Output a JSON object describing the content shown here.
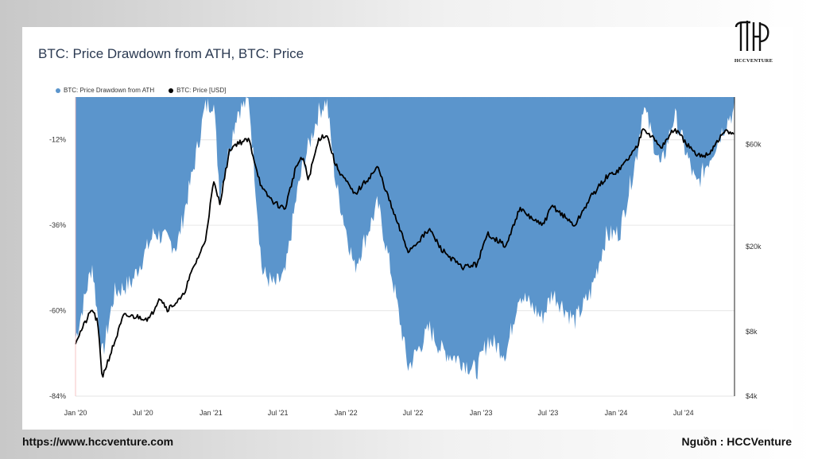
{
  "header": {
    "title": "BTC: Price Drawdown from ATH, BTC: Price",
    "logo_text": "HCCVENTURE"
  },
  "footer": {
    "website": "https://www.hccventure.com",
    "source": "Nguồn : HCCVenture"
  },
  "colors": {
    "drawdown": "#5b95cc",
    "price": "#000000",
    "grid": "#e6e6e6"
  },
  "chart_data": {
    "type": "area",
    "title": "BTC: Price Drawdown from ATH, BTC: Price",
    "x_ticks": [
      "Jan '20",
      "Jul '20",
      "Jan '21",
      "Jul '21",
      "Jan '22",
      "Jul '22",
      "Jan '23",
      "Jul '23",
      "Jan '24",
      "Jul '24"
    ],
    "y_left_ticks": [
      "-12%",
      "-36%",
      "-60%",
      "-84%"
    ],
    "y_right_ticks": [
      "$60k",
      "$20k",
      "$8k",
      "$4k"
    ],
    "y_left_range": [
      -84,
      0
    ],
    "y_right_scale": "log",
    "y_right_range": [
      4000,
      100000
    ],
    "grid": true,
    "legend_position": "top-left",
    "series": [
      {
        "name": "BTC: Price Drawdown from ATH",
        "axis": "left",
        "style": "area",
        "x": [
          "2020-01-01",
          "2020-02-15",
          "2020-03-13",
          "2020-04-15",
          "2020-06-01",
          "2020-08-01",
          "2020-10-01",
          "2020-11-15",
          "2020-12-16",
          "2021-01-08",
          "2021-01-25",
          "2021-03-13",
          "2021-04-14",
          "2021-05-19",
          "2021-06-22",
          "2021-07-20",
          "2021-08-20",
          "2021-09-07",
          "2021-10-20",
          "2021-11-10",
          "2021-12-04",
          "2022-01-24",
          "2022-03-28",
          "2022-05-12",
          "2022-06-18",
          "2022-08-15",
          "2022-09-15",
          "2022-11-09",
          "2022-12-20",
          "2023-01-20",
          "2023-03-10",
          "2023-04-14",
          "2023-06-15",
          "2023-07-13",
          "2023-09-11",
          "2023-10-24",
          "2023-12-05",
          "2024-01-11",
          "2024-02-28",
          "2024-03-14",
          "2024-05-01",
          "2024-06-07",
          "2024-08-05",
          "2024-09-06",
          "2024-10-20",
          "2024-11-05"
        ],
        "values": [
          -68,
          -47,
          -73,
          -55,
          -52,
          -38,
          -42,
          -20,
          -3,
          -1,
          -27,
          -4,
          -1,
          -49,
          -53,
          -50,
          -28,
          -19,
          -4,
          -1,
          -24,
          -48,
          -30,
          -54,
          -76,
          -65,
          -71,
          -74,
          -77,
          -68,
          -72,
          -55,
          -62,
          -55,
          -63,
          -55,
          -39,
          -38,
          -15,
          -2,
          -20,
          -5,
          -25,
          -18,
          -8,
          -5
        ]
      },
      {
        "name": "BTC: Price [USD]",
        "axis": "right",
        "style": "line",
        "x": [
          "2020-01-01",
          "2020-02-15",
          "2020-03-01",
          "2020-03-13",
          "2020-04-15",
          "2020-05-10",
          "2020-06-15",
          "2020-07-20",
          "2020-08-15",
          "2020-09-05",
          "2020-10-15",
          "2020-11-15",
          "2020-12-16",
          "2021-01-08",
          "2021-01-25",
          "2021-02-21",
          "2021-03-13",
          "2021-04-14",
          "2021-05-19",
          "2021-06-22",
          "2021-07-20",
          "2021-08-20",
          "2021-09-07",
          "2021-09-21",
          "2021-10-20",
          "2021-11-10",
          "2021-12-04",
          "2022-01-24",
          "2022-03-28",
          "2022-05-12",
          "2022-06-18",
          "2022-08-15",
          "2022-09-15",
          "2022-11-09",
          "2022-12-20",
          "2023-01-20",
          "2023-03-10",
          "2023-04-14",
          "2023-06-15",
          "2023-07-13",
          "2023-09-11",
          "2023-10-24",
          "2023-12-05",
          "2024-01-11",
          "2024-02-28",
          "2024-03-14",
          "2024-05-01",
          "2024-06-07",
          "2024-08-05",
          "2024-09-06",
          "2024-10-20",
          "2024-11-05"
        ],
        "values": [
          7200,
          10200,
          8800,
          4900,
          7100,
          9500,
          9400,
          9200,
          11700,
          10200,
          11500,
          16000,
          21000,
          40000,
          32000,
          57000,
          61000,
          63000,
          37000,
          32000,
          30000,
          48000,
          52000,
          41000,
          64000,
          67000,
          48000,
          35000,
          47000,
          28000,
          19000,
          24000,
          19500,
          16000,
          16500,
          23000,
          20000,
          30000,
          25000,
          31000,
          25000,
          34000,
          42000,
          46000,
          59000,
          73000,
          58000,
          71000,
          53000,
          54000,
          69000,
          68000
        ]
      }
    ]
  }
}
